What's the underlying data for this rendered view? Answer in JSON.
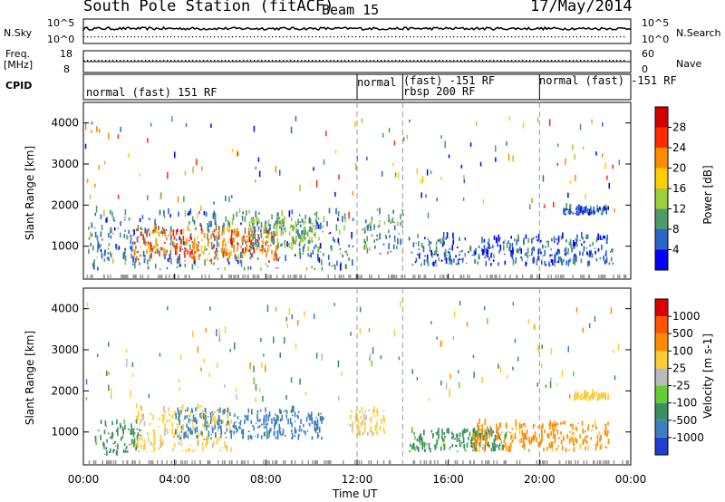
{
  "header": {
    "station": "South Pole Station (fitACF)",
    "beam": "Beam 15",
    "date": "17/May/2014"
  },
  "left_labels": {
    "nsky": "N.Sky",
    "nsky_ticks": [
      "10^5",
      "10^0"
    ],
    "freq": "Freq.",
    "freq_unit": "[MHz]",
    "freq_ticks": [
      "18",
      "8"
    ],
    "cpid": "CPID"
  },
  "right_labels": {
    "nsearch": "N.Search",
    "nsearch_ticks": [
      "10^5",
      "10^0"
    ],
    "nave": "Nave",
    "nave_ticks": [
      "60",
      "0"
    ]
  },
  "modes": [
    {
      "label": "normal (fast) 151 RF"
    },
    {
      "label": "normal"
    },
    {
      "label": "(fast) -151 RF"
    },
    {
      "label": "rbsp 200 RF"
    },
    {
      "label": "normal (fast) -151 RF"
    }
  ],
  "x_axis": {
    "label": "Time UT",
    "ticks": [
      "00:00",
      "04:00",
      "08:00",
      "12:00",
      "16:00",
      "20:00",
      "00:00"
    ]
  },
  "chart_data": [
    {
      "type": "heatmap",
      "name": "power",
      "ylabel": "Slant Range [km]",
      "yticks": [
        "1000",
        "2000",
        "3000",
        "4000"
      ],
      "ylim": [
        200,
        4500
      ],
      "xlim_hours": [
        0,
        24
      ],
      "colorbar_label": "Power [dB]",
      "colorbar_ticks": [
        "4",
        "8",
        "12",
        "16",
        "20",
        "24",
        "28"
      ],
      "colormap": [
        "#0000ff",
        "#2a66c8",
        "#4f9a6a",
        "#9dcf3a",
        "#ffd000",
        "#ff8c00",
        "#ff2a00",
        "#d40000"
      ],
      "regions": [
        {
          "t0": 0.2,
          "t1": 11.8,
          "r0": 400,
          "r1": 1800,
          "level": 8
        },
        {
          "t0": 2.2,
          "t1": 8.5,
          "r0": 600,
          "r1": 1400,
          "level": 24
        },
        {
          "t0": 7.2,
          "t1": 10.5,
          "r0": 900,
          "r1": 1600,
          "level": 12
        },
        {
          "t0": 12.2,
          "t1": 14.0,
          "r0": 800,
          "r1": 1800,
          "level": 10
        },
        {
          "t0": 14.2,
          "t1": 23.2,
          "r0": 500,
          "r1": 1200,
          "level": 6
        },
        {
          "t0": 21.0,
          "t1": 23.0,
          "r0": 1750,
          "r1": 1900,
          "level": 5
        }
      ]
    },
    {
      "type": "heatmap",
      "name": "velocity",
      "ylabel": "Slant Range [km]",
      "yticks": [
        "1000",
        "2000",
        "3000",
        "4000"
      ],
      "ylim": [
        200,
        4500
      ],
      "xlim_hours": [
        0,
        24
      ],
      "colorbar_label": "Velocity [m s-1]",
      "colorbar_ticks": [
        "1000",
        "500",
        "100",
        "25",
        "-25",
        "-100",
        "-500",
        "-1000"
      ],
      "colormap": [
        "#1f3fd0",
        "#3c7fc0",
        "#3a8f60",
        "#66cc33",
        "#bbbbbb",
        "#ffcc33",
        "#ff8c00",
        "#ff5500",
        "#dd0000"
      ],
      "regions": [
        {
          "t0": 0.5,
          "t1": 2.5,
          "r0": 400,
          "r1": 1200,
          "level": 100
        },
        {
          "t0": 2.2,
          "t1": 6.5,
          "r0": 500,
          "r1": 1600,
          "level": -100
        },
        {
          "t0": 4.0,
          "t1": 10.5,
          "r0": 800,
          "r1": 1500,
          "level": 500
        },
        {
          "t0": 11.5,
          "t1": 13.2,
          "r0": 900,
          "r1": 1500,
          "level": -100
        },
        {
          "t0": 14.2,
          "t1": 18.5,
          "r0": 500,
          "r1": 1000,
          "level": 100
        },
        {
          "t0": 17.0,
          "t1": 23.0,
          "r0": 500,
          "r1": 1200,
          "level": -500
        },
        {
          "t0": 21.5,
          "t1": 23.0,
          "r0": 1750,
          "r1": 1900,
          "level": -100
        }
      ]
    }
  ]
}
